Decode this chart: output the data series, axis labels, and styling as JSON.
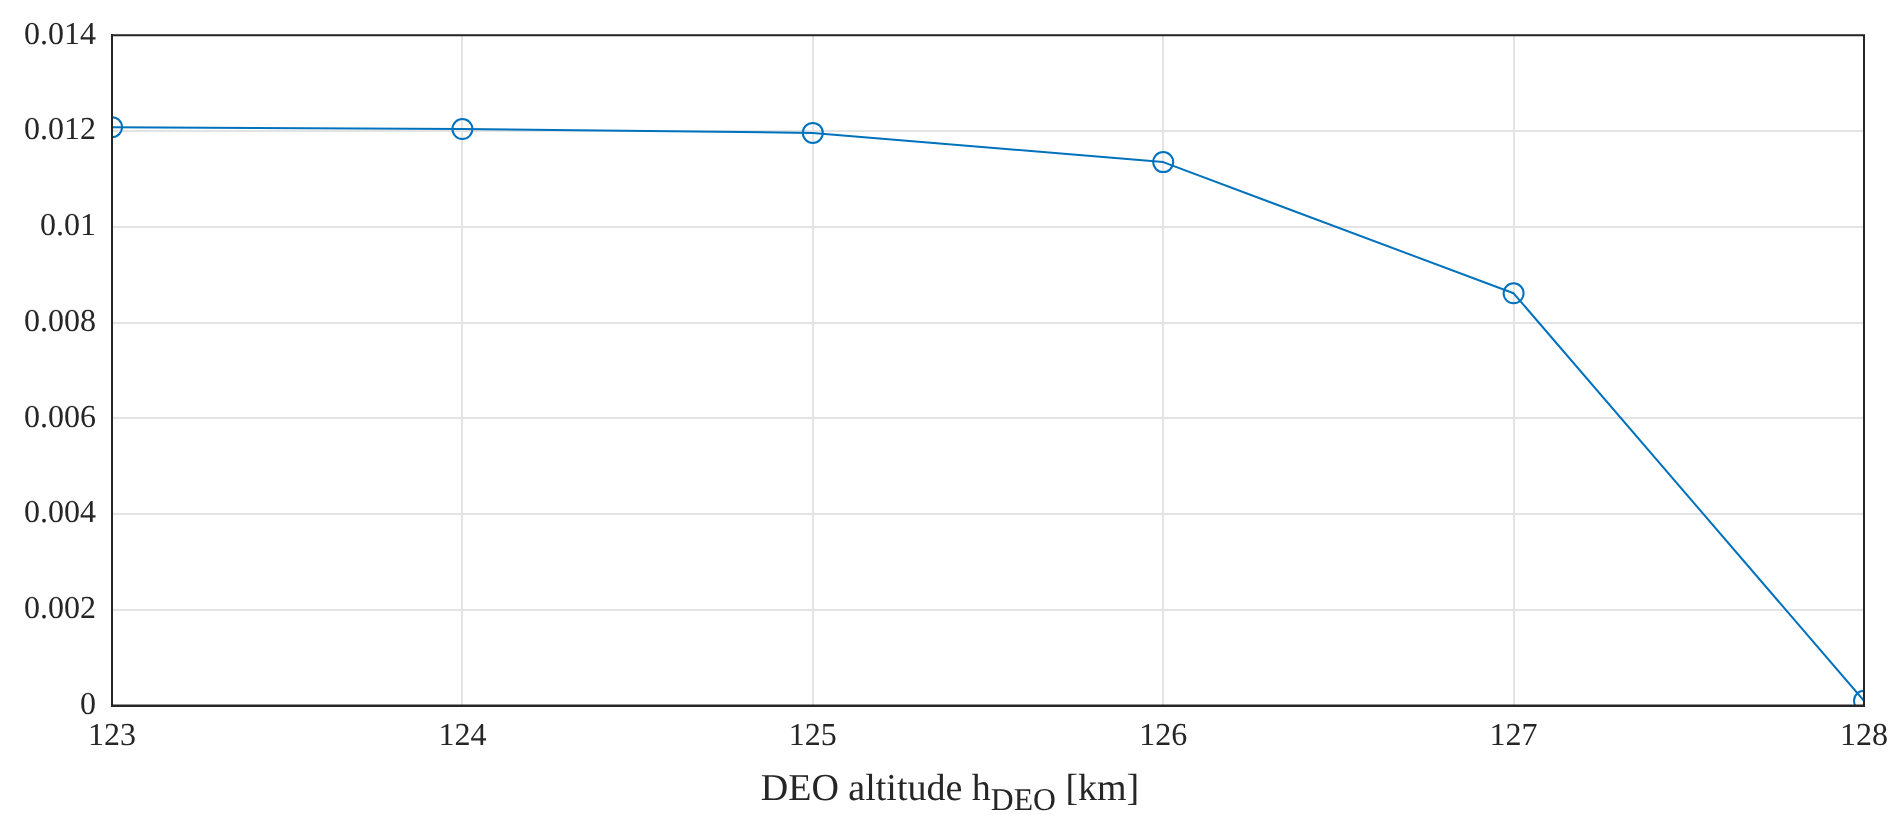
{
  "chart_data": {
    "type": "line",
    "xlabel": "DEO altitude h$_{DEO}$ [km]",
    "x": [
      123,
      124,
      125,
      126,
      127,
      128
    ],
    "series": [
      {
        "color": "#0072bd",
        "values": [
          0.01208,
          0.01204,
          0.01196,
          0.01135,
          0.00861,
          0.0001
        ]
      }
    ],
    "xlim": [
      123,
      128
    ],
    "xticks": [
      123,
      124,
      125,
      126,
      127,
      128
    ],
    "ylim": [
      0,
      0.014
    ],
    "yticks": [
      0,
      0.002,
      0.004,
      0.006,
      0.008,
      0.01,
      0.012,
      0.014
    ],
    "grid": true,
    "legend": false,
    "marker": "circle",
    "line_style": "solid"
  }
}
